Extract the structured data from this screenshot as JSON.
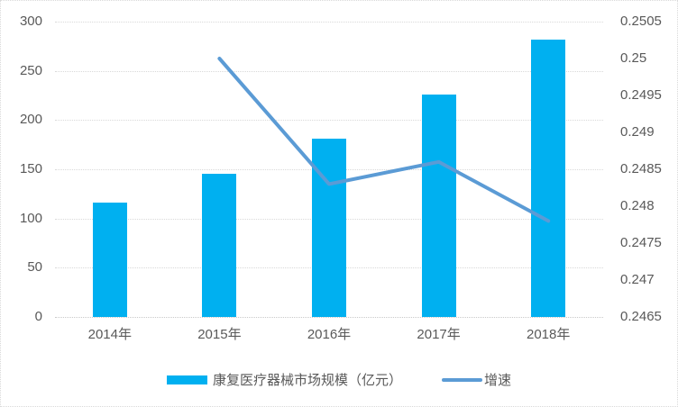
{
  "chart_data": {
    "type": "bar+line",
    "categories": [
      "2014年",
      "2015年",
      "2016年",
      "2017年",
      "2018年"
    ],
    "series": [
      {
        "name": "康复医疗器械市场规模（亿元）",
        "type": "bar",
        "axis": "left",
        "values": [
          116,
          145,
          181,
          226,
          282
        ],
        "color": "#00b0f0"
      },
      {
        "name": "增速",
        "type": "line",
        "axis": "right",
        "values": [
          null,
          0.25,
          0.2483,
          0.2486,
          0.2478
        ],
        "color": "#5b9bd5"
      }
    ],
    "title": "",
    "xlabel": "",
    "ylabel": "",
    "left_axis": {
      "ylim": [
        0,
        300
      ],
      "ticks": [
        "300",
        "250",
        "200",
        "150",
        "100",
        "50",
        "0"
      ]
    },
    "right_axis": {
      "ylim": [
        0.2465,
        0.2505
      ],
      "ticks": [
        "0.2505",
        "0.25",
        "0.2495",
        "0.249",
        "0.2485",
        "0.248",
        "0.2475",
        "0.247",
        "0.2465"
      ]
    },
    "grid": true,
    "legend_position": "bottom"
  },
  "colors": {
    "bar": "#00b0f0",
    "line": "#5b9bd5",
    "gridline": "#d9d9d9",
    "axis_text": "#595959",
    "background": "#ffffff"
  }
}
